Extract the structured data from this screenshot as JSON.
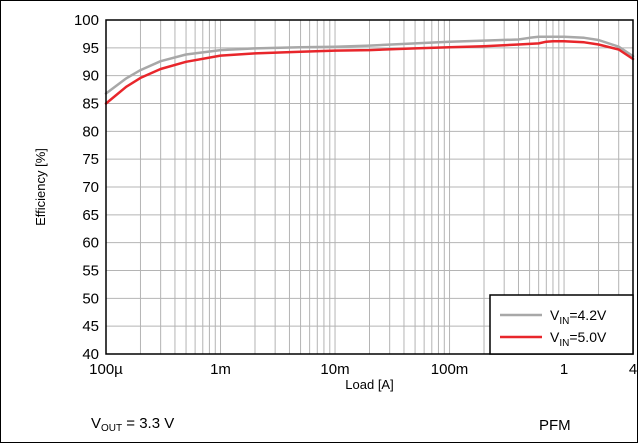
{
  "chart_data": {
    "type": "line",
    "xlabel": "Load [A]",
    "ylabel": "Efficiency [%]",
    "x_scale": "log",
    "xlim": [
      0.0001,
      4
    ],
    "ylim": [
      40,
      100
    ],
    "x_ticks": [
      0.0001,
      0.001,
      0.01,
      0.1,
      1,
      4
    ],
    "x_tick_labels": [
      "100µ",
      "1m",
      "10m",
      "100m",
      "1",
      "4"
    ],
    "y_ticks": [
      40,
      45,
      50,
      55,
      60,
      65,
      70,
      75,
      80,
      85,
      90,
      95,
      100
    ],
    "y_tick_labels": [
      "40",
      "45",
      "50",
      "55",
      "60",
      "65",
      "70",
      "75",
      "80",
      "85",
      "90",
      "95",
      "100"
    ],
    "grid": true,
    "legend_position": "bottom-right",
    "series": [
      {
        "name_main": "V",
        "name_sub": "IN",
        "name_tail": "=4.2V",
        "color": "#a8a8a8",
        "x": [
          0.0001,
          0.00015,
          0.0002,
          0.0003,
          0.0005,
          0.001,
          0.002,
          0.005,
          0.01,
          0.02,
          0.05,
          0.1,
          0.2,
          0.4,
          0.5,
          0.6,
          0.8,
          1,
          1.5,
          2,
          3,
          4
        ],
        "y": [
          86.8,
          89.5,
          91.0,
          92.6,
          93.8,
          94.6,
          94.9,
          95.1,
          95.2,
          95.4,
          95.8,
          96.1,
          96.3,
          96.5,
          96.8,
          97.0,
          97.0,
          97.0,
          96.8,
          96.4,
          95.2,
          93.5
        ]
      },
      {
        "name_main": "V",
        "name_sub": "IN",
        "name_tail": "=5.0V",
        "color": "#e8262b",
        "x": [
          0.0001,
          0.00015,
          0.0002,
          0.0003,
          0.0005,
          0.001,
          0.002,
          0.005,
          0.01,
          0.02,
          0.05,
          0.1,
          0.2,
          0.4,
          0.6,
          0.7,
          0.8,
          1,
          1.5,
          2,
          3,
          4
        ],
        "y": [
          85.0,
          88.0,
          89.6,
          91.2,
          92.5,
          93.6,
          94.0,
          94.3,
          94.5,
          94.6,
          94.9,
          95.1,
          95.3,
          95.6,
          95.8,
          96.1,
          96.2,
          96.2,
          96.0,
          95.6,
          94.7,
          93.0
        ]
      }
    ]
  },
  "footer": {
    "vout_main": "V",
    "vout_sub": "OUT",
    "vout_tail": " = 3.3 V",
    "mode": "PFM"
  }
}
